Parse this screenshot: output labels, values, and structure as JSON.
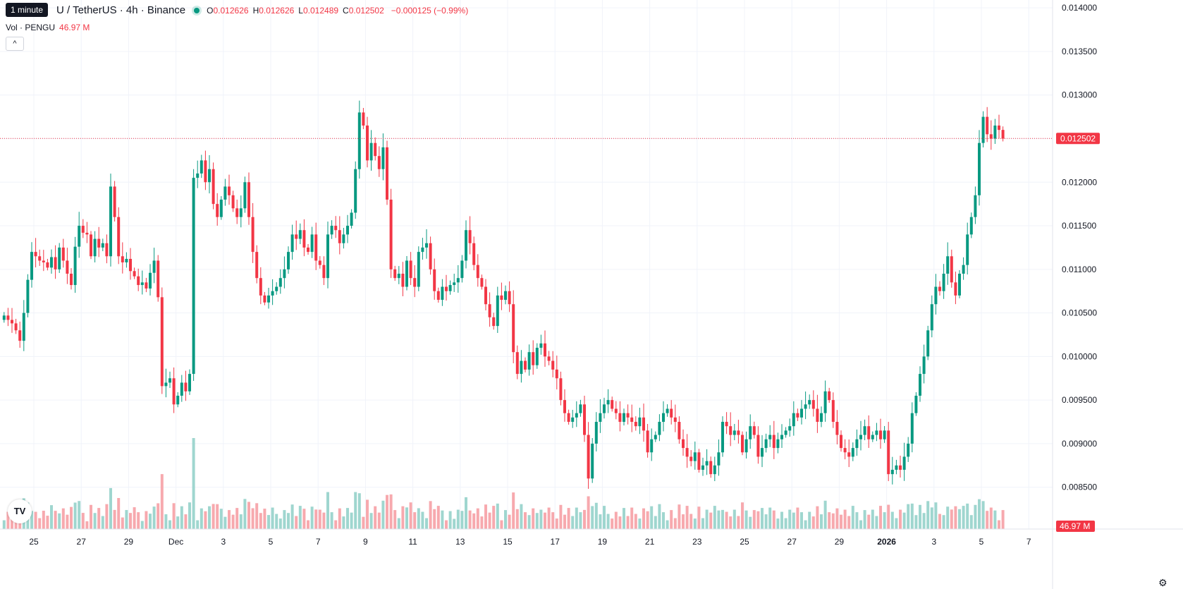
{
  "header": {
    "tooltip": "1 minute",
    "symbol": "U / TetherUS · 4h · Binance",
    "open_label": "O",
    "open": "0.012626",
    "high_label": "H",
    "high": "0.012626",
    "low_label": "L",
    "low": "0.012489",
    "close_label": "C",
    "close": "0.012502",
    "change": "−0.000125 (−0.99%)",
    "vol_label": "Vol · PENGU",
    "vol_value": "46.97 M",
    "collapse_icon": "^"
  },
  "colors": {
    "up": "#089981",
    "down": "#f23645",
    "up_vol": "#9fd6cf",
    "down_vol": "#f7a9ae"
  },
  "chart_data": {
    "type": "candlestick",
    "y_ticks": [
      "0.014000",
      "0.013500",
      "0.013000",
      "0.012500",
      "0.012000",
      "0.011500",
      "0.011000",
      "0.010500",
      "0.010000",
      "0.009500",
      "0.009000",
      "0.008500"
    ],
    "ylim": [
      0.00802,
      0.01405
    ],
    "x_ticks": [
      "25",
      "27",
      "29",
      "Dec",
      "3",
      "5",
      "7",
      "9",
      "11",
      "13",
      "15",
      "17",
      "19",
      "21",
      "23",
      "25",
      "27",
      "29",
      "2026",
      "3",
      "5",
      "7"
    ],
    "last_price": "0.012502",
    "last_volume": "46.97 M",
    "closes": [
      0.01047,
      0.01042,
      0.01038,
      0.0103,
      0.01018,
      0.0105,
      0.01088,
      0.0112,
      0.01115,
      0.0111,
      0.01108,
      0.01102,
      0.01114,
      0.011,
      0.01125,
      0.0111,
      0.01095,
      0.01082,
      0.01126,
      0.0115,
      0.01142,
      0.0114,
      0.01115,
      0.01135,
      0.01125,
      0.0113,
      0.01115,
      0.01195,
      0.0116,
      0.01115,
      0.01108,
      0.01112,
      0.01098,
      0.01092,
      0.01082,
      0.01085,
      0.01078,
      0.01096,
      0.0111,
      0.01068,
      0.00966,
      0.0097,
      0.00975,
      0.00945,
      0.00955,
      0.0097,
      0.0096,
      0.0098,
      0.01205,
      0.0121,
      0.01225,
      0.012,
      0.01215,
      0.01175,
      0.0116,
      0.0118,
      0.01195,
      0.01185,
      0.0117,
      0.0116,
      0.0117,
      0.012,
      0.0116,
      0.0112,
      0.0109,
      0.0107,
      0.01062,
      0.0107,
      0.01075,
      0.0108,
      0.0109,
      0.011,
      0.0112,
      0.0114,
      0.01135,
      0.01145,
      0.01125,
      0.0112,
      0.0114,
      0.0111,
      0.01105,
      0.0109,
      0.0114,
      0.0115,
      0.01145,
      0.0113,
      0.0114,
      0.0115,
      0.01165,
      0.01215,
      0.0128,
      0.01265,
      0.01225,
      0.01245,
      0.0123,
      0.01215,
      0.0124,
      0.0118,
      0.011,
      0.0109,
      0.01095,
      0.0108,
      0.0111,
      0.0109,
      0.0108,
      0.0112,
      0.01125,
      0.0113,
      0.011,
      0.01075,
      0.01065,
      0.0108,
      0.01075,
      0.01082,
      0.01085,
      0.0109,
      0.0111,
      0.01145,
      0.0113,
      0.01105,
      0.0109,
      0.0108,
      0.0106,
      0.01045,
      0.01035,
      0.0107,
      0.01065,
      0.01075,
      0.0106,
      0.01005,
      0.0098,
      0.00995,
      0.00985,
      0.01005,
      0.0099,
      0.0101,
      0.01015,
      0.01,
      0.00995,
      0.00985,
      0.00975,
      0.0095,
      0.00935,
      0.00925,
      0.0093,
      0.00935,
      0.00945,
      0.0091,
      0.0086,
      0.009,
      0.00925,
      0.00935,
      0.00945,
      0.0095,
      0.0094,
      0.00935,
      0.00925,
      0.00935,
      0.0093,
      0.00925,
      0.0092,
      0.0093,
      0.00915,
      0.0089,
      0.00905,
      0.0091,
      0.00925,
      0.00935,
      0.0094,
      0.0093,
      0.00925,
      0.00905,
      0.00895,
      0.00885,
      0.0088,
      0.0089,
      0.0087,
      0.00875,
      0.0088,
      0.00865,
      0.00875,
      0.0089,
      0.00925,
      0.0092,
      0.0091,
      0.00915,
      0.0091,
      0.0089,
      0.00905,
      0.0092,
      0.0091,
      0.00885,
      0.00895,
      0.00905,
      0.0091,
      0.00895,
      0.00905,
      0.0091,
      0.00915,
      0.0092,
      0.00935,
      0.0093,
      0.0094,
      0.00945,
      0.0095,
      0.0094,
      0.00925,
      0.00935,
      0.0096,
      0.0095,
      0.00925,
      0.0091,
      0.00895,
      0.0089,
      0.00885,
      0.00895,
      0.00905,
      0.0091,
      0.0092,
      0.00905,
      0.0091,
      0.00915,
      0.00905,
      0.00915,
      0.00865,
      0.0087,
      0.00875,
      0.0087,
      0.00885,
      0.009,
      0.00935,
      0.00955,
      0.0098,
      0.01,
      0.0103,
      0.0106,
      0.0108,
      0.01075,
      0.01095,
      0.01115,
      0.01085,
      0.0107,
      0.01095,
      0.01105,
      0.0114,
      0.0116,
      0.01185,
      0.01245,
      0.01275,
      0.01255,
      0.0125,
      0.01265,
      0.0126,
      0.0125
    ]
  }
}
